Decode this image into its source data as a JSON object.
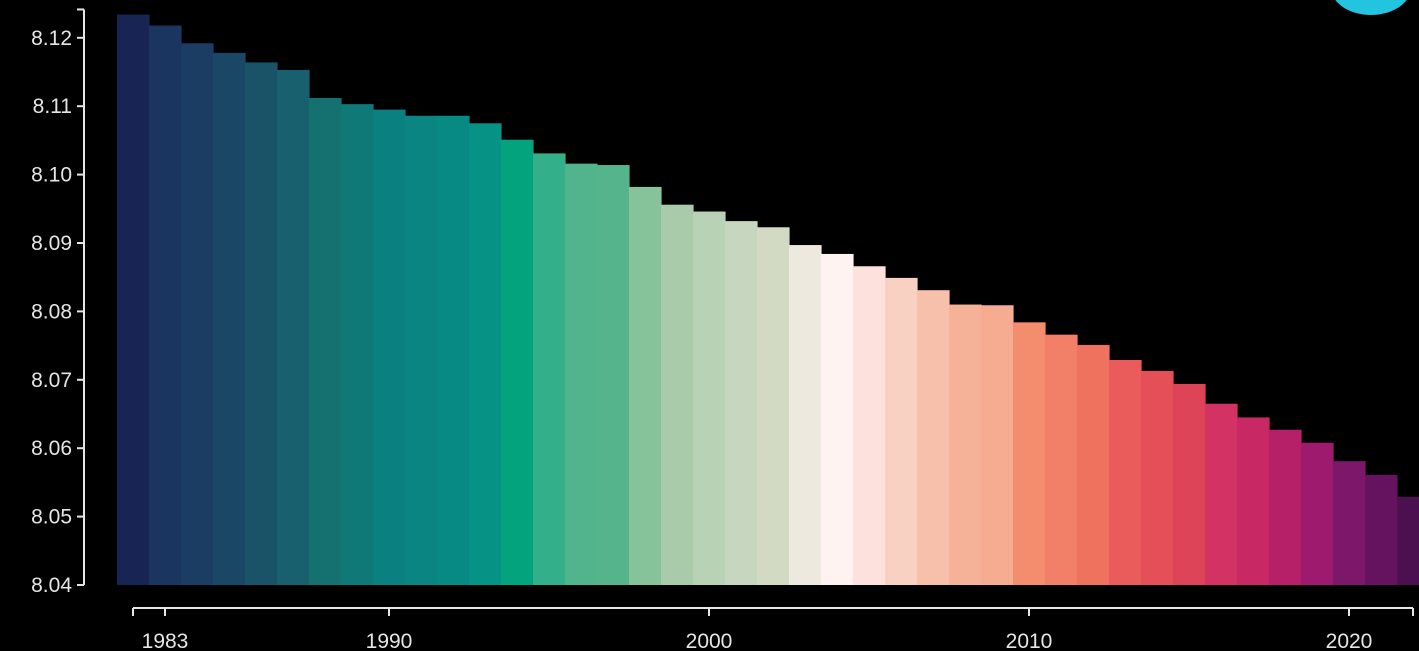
{
  "chart_data": {
    "type": "bar",
    "title": "",
    "xlabel": "",
    "ylabel": "",
    "ylim": [
      8.04,
      8.124
    ],
    "xlim": [
      1982,
      2022
    ],
    "grid": false,
    "y_ticks": [
      "8.04",
      "8.05",
      "8.06",
      "8.07",
      "8.08",
      "8.09",
      "8.10",
      "8.11",
      "8.12"
    ],
    "x_ticks": [
      "1983",
      "1990",
      "2000",
      "2010",
      "2020"
    ],
    "x": [
      1982,
      1983,
      1984,
      1985,
      1986,
      1987,
      1988,
      1989,
      1990,
      1991,
      1992,
      1993,
      1994,
      1995,
      1996,
      1997,
      1998,
      1999,
      2000,
      2001,
      2002,
      2003,
      2004,
      2005,
      2006,
      2007,
      2008,
      2009,
      2010,
      2011,
      2012,
      2013,
      2014,
      2015,
      2016,
      2017,
      2018,
      2019,
      2020,
      2021,
      2022
    ],
    "values": [
      8.1234,
      8.1218,
      8.1192,
      8.1178,
      8.1164,
      8.1153,
      8.1112,
      8.1103,
      8.1095,
      8.1086,
      8.1086,
      8.1075,
      8.1051,
      8.1031,
      8.1016,
      8.1014,
      8.0982,
      8.0956,
      8.0946,
      8.0932,
      8.0923,
      8.0897,
      8.0884,
      8.0866,
      8.0849,
      8.0831,
      8.081,
      8.0809,
      8.0784,
      8.0766,
      8.0751,
      8.0729,
      8.0713,
      8.0694,
      8.0665,
      8.0645,
      8.0627,
      8.0608,
      8.0581,
      8.0561,
      8.0529
    ],
    "colors": [
      "#182454",
      "#1a3560",
      "#1b3d63",
      "#1b4766",
      "#1a5268",
      "#19606e",
      "#14716f",
      "#0f7977",
      "#0b8080",
      "#0a8582",
      "#088a84",
      "#069285",
      "#03a37e",
      "#33b08a",
      "#52b48c",
      "#55b48b",
      "#86c39a",
      "#a9cbaa",
      "#b8d2b6",
      "#c7d7bf",
      "#d2dac4",
      "#ede9de",
      "#fff3f1",
      "#fde1dc",
      "#f8d1c3",
      "#f6c0ab",
      "#f6b299",
      "#f5ac90",
      "#f38d6e",
      "#f28069",
      "#ef725f",
      "#ea5b5b",
      "#e54f58",
      "#de4458",
      "#d33265",
      "#c82864",
      "#b52068",
      "#9e1a6e",
      "#7d1769",
      "#66135f",
      "#4a1050"
    ]
  },
  "badge_color": "#22c4e0"
}
